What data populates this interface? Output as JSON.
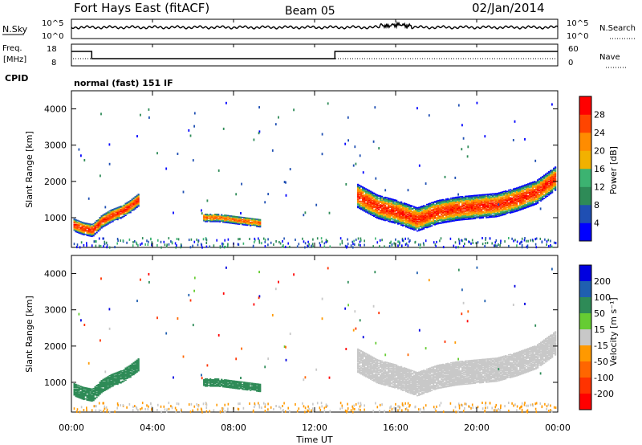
{
  "header": {
    "station": "Fort Hays East (fitACF)",
    "beam": "Beam 05",
    "date": "02/Jan/2014"
  },
  "status": {
    "nsky_label": "N.Sky",
    "nsky_ticks": [
      "10^5",
      "10^0"
    ],
    "nsearch_label": "N.Search",
    "freq_label_1": "Freq.",
    "freq_label_2": "[MHz]",
    "freq_ticks": [
      "18",
      "8"
    ],
    "nave_label": "Nave",
    "nave_ticks": [
      "60",
      "0"
    ],
    "nsky_right_ticks": [
      "10^5",
      "10^0"
    ],
    "cpid_label": "CPID",
    "cpid_text": "normal (fast) 151 IF"
  },
  "axes": {
    "x_ticks": [
      "00:00",
      "04:00",
      "08:00",
      "12:00",
      "16:00",
      "20:00",
      "00:00"
    ],
    "xlabel": "Time UT",
    "ylabel": "Slant Range [km]",
    "y_ticks": [
      "1000",
      "2000",
      "3000",
      "4000"
    ]
  },
  "power_scale": {
    "label": "Power [dB]",
    "ticks": [
      "4",
      "8",
      "12",
      "16",
      "20",
      "24",
      "28"
    ],
    "colors": [
      "#0000ff",
      "#1f4fb3",
      "#2e8b57",
      "#3cb371",
      "#f2b100",
      "#ff8c00",
      "#ff4500",
      "#ff0000"
    ]
  },
  "velocity_scale": {
    "label": "Velocity [m s⁻¹]",
    "ticks": [
      "200",
      "100",
      "50",
      "15",
      "-15",
      "-50",
      "-100",
      "-200"
    ],
    "colors": [
      "#0000e0",
      "#1f5fb0",
      "#2e8b57",
      "#66cc33",
      "#c8c8c8",
      "#ff9900",
      "#ff6600",
      "#ff3300",
      "#ff0000"
    ]
  },
  "chart_data": {
    "type": "heatmap",
    "x_range_hours": [
      0,
      24
    ],
    "y_range_km": [
      180,
      4500
    ],
    "freq_mhz": [
      {
        "from_hour": 0,
        "to_hour": 1,
        "value": 14
      },
      {
        "from_hour": 1,
        "to_hour": 13,
        "value": 10
      },
      {
        "from_hour": 13,
        "to_hour": 24,
        "value": 14
      }
    ],
    "power_bands": [
      {
        "start_hour": 0.1,
        "end_hour": 3.3,
        "center_km": [
          800,
          700,
          650,
          900,
          1050,
          1150,
          1300,
          1500
        ],
        "width_km": 350,
        "peak_db": 28
      },
      {
        "start_hour": 6.5,
        "end_hour": 9.3,
        "center_km": [
          1000,
          1000,
          950,
          900,
          850
        ],
        "width_km": 220,
        "peak_db": 24
      },
      {
        "start_hour": 14.1,
        "end_hour": 23.9,
        "center_km": [
          1600,
          1300,
          1150,
          950,
          1150,
          1250,
          1300,
          1350,
          1500,
          1700,
          2100
        ],
        "width_km": 650,
        "peak_db": 28
      }
    ],
    "velocity_bands": [
      {
        "start_hour": 0.1,
        "end_hour": 3.3,
        "center_km": [
          800,
          700,
          650,
          900,
          1050,
          1150,
          1300,
          1500
        ],
        "width_km": 350,
        "velocity": 40
      },
      {
        "start_hour": 6.5,
        "end_hour": 9.3,
        "center_km": [
          1000,
          1000,
          950,
          900,
          850
        ],
        "width_km": 220,
        "velocity": 40
      },
      {
        "start_hour": 14.1,
        "end_hour": 23.9,
        "center_km": [
          1600,
          1300,
          1150,
          950,
          1150,
          1250,
          1300,
          1350,
          1500,
          1700,
          2100
        ],
        "width_km": 650,
        "velocity": 0
      }
    ]
  }
}
